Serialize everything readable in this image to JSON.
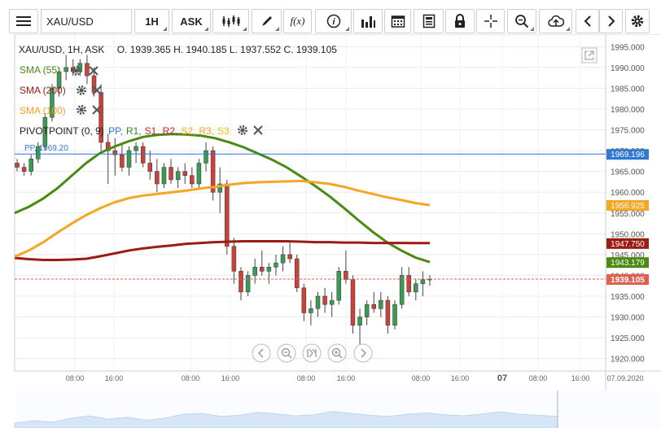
{
  "toolbar": {
    "symbol": "XAU/USD",
    "timeframe": "1H",
    "price_side": "ASK",
    "fx_label": "f(x)"
  },
  "info": {
    "header": "XAU/USD, 1H, ASK",
    "ohlc": "O. 1939.365 H. 1940.185 L. 1937.552 C. 1939.105"
  },
  "indicators": [
    {
      "label": "SMA (55)",
      "color": "#4a8a12"
    },
    {
      "label": "SMA (200)",
      "color": "#9b1c12"
    },
    {
      "label": "SMA (100)",
      "color": "#f5a623"
    }
  ],
  "pivot": {
    "label": "PIVOTPOINT (0, 9)",
    "levels": [
      {
        "name": "PP,",
        "color": "#2f77d0"
      },
      {
        "name": "R1,",
        "color": "#2e8b2e"
      },
      {
        "name": "S1,",
        "color": "#c0271e"
      },
      {
        "name": "R2,",
        "color": "#c0271e"
      },
      {
        "name": "S2,",
        "color": "#f5a623"
      },
      {
        "name": "R3,",
        "color": "#f5a623"
      },
      {
        "name": "S3",
        "color": "#e8c400"
      }
    ],
    "pp_line_label": "PP, 1969.20",
    "pp_value": 1969.196
  },
  "chart_data": {
    "type": "line",
    "ylim": [
      1917,
      1998
    ],
    "y_ticks": [
      1920,
      1925,
      1930,
      1935,
      1940,
      1945,
      1950,
      1955,
      1960,
      1965,
      1970,
      1975,
      1980,
      1985,
      1990,
      1995
    ],
    "y_tick_labels": [
      "1920.000",
      "1925.000",
      "1930.000",
      "1935.000",
      "1940.000",
      "1945.000",
      "1950.000",
      "1955.000",
      "1960.000",
      "1965.000",
      "1970.000",
      "1975.000",
      "1980.000",
      "1985.000",
      "1990.000",
      "1995.000"
    ],
    "x_tick_labels": [
      "08:00",
      "16:00",
      "08:00",
      "16:00",
      "08:00",
      "16:00",
      "08:00",
      "16:00",
      "07",
      "08:00",
      "16:00",
      "07.09.2020"
    ],
    "price_labels": [
      {
        "text": "1969.196",
        "value": 1969.196,
        "color": "#2f77d0"
      },
      {
        "text": "1956.925",
        "value": 1956.925,
        "color": "#f5a623"
      },
      {
        "text": "1947.750",
        "value": 1947.75,
        "color": "#9b1c12"
      },
      {
        "text": "1943.179",
        "value": 1943.179,
        "color": "#4a8a12"
      },
      {
        "text": "1939.105",
        "value": 1939.105,
        "color": "#e0604f"
      }
    ],
    "series": [
      {
        "name": "SMA (55)",
        "color": "#4a8a12",
        "values": [
          1955,
          1956.5,
          1958.5,
          1961,
          1964,
          1967,
          1969.5,
          1971,
          1972.3,
          1973.3,
          1973.8,
          1974,
          1973.9,
          1973.6,
          1973,
          1972,
          1970.8,
          1969.3,
          1967.8,
          1966,
          1963.8,
          1961.5,
          1959,
          1956.2,
          1953.3,
          1950.5,
          1948,
          1946,
          1944.3,
          1943.2
        ]
      },
      {
        "name": "SMA (200)",
        "color": "#9b1c12",
        "values": [
          1944.2,
          1943.9,
          1943.7,
          1943.7,
          1943.8,
          1944,
          1944.6,
          1945.3,
          1946,
          1946.5,
          1946.9,
          1947.2,
          1947.6,
          1947.8,
          1948,
          1948.1,
          1948.2,
          1948.2,
          1948.2,
          1948.2,
          1948.1,
          1948,
          1948,
          1947.9,
          1947.9,
          1947.8,
          1947.8,
          1947.8,
          1947.75,
          1947.75
        ]
      },
      {
        "name": "SMA (100)",
        "color": "#f5a623",
        "values": [
          1944.5,
          1946,
          1948,
          1950.3,
          1952.5,
          1954.5,
          1956.2,
          1957.6,
          1958.6,
          1959.2,
          1959.6,
          1960,
          1960.4,
          1960.9,
          1961.3,
          1961.8,
          1962.2,
          1962.4,
          1962.5,
          1962.6,
          1962.7,
          1962.4,
          1962,
          1961.3,
          1960.4,
          1959.6,
          1958.8,
          1958.1,
          1957.4,
          1956.9
        ]
      }
    ],
    "candles": [
      [
        1967,
        1968,
        1965,
        1966
      ],
      [
        1966,
        1967,
        1964,
        1965
      ],
      [
        1965,
        1969,
        1964,
        1968
      ],
      [
        1968,
        1972,
        1967,
        1971
      ],
      [
        1971,
        1979,
        1970,
        1978
      ],
      [
        1978,
        1986,
        1977,
        1985
      ],
      [
        1985,
        1990,
        1983,
        1989
      ],
      [
        1989,
        1993,
        1987,
        1990
      ],
      [
        1990,
        1992,
        1988,
        1989
      ],
      [
        1989,
        1992,
        1988,
        1991
      ],
      [
        1991,
        1993,
        1986,
        1988
      ],
      [
        1988,
        1990,
        1983,
        1984
      ],
      [
        1984,
        1986,
        1970,
        1972
      ],
      [
        1972,
        1974,
        1962,
        1970
      ],
      [
        1970,
        1973,
        1964,
        1969
      ],
      [
        1969,
        1972,
        1965,
        1966
      ],
      [
        1966,
        1971,
        1964,
        1970
      ],
      [
        1970,
        1972,
        1967,
        1971
      ],
      [
        1971,
        1972,
        1966,
        1967
      ],
      [
        1967,
        1970,
        1963,
        1965
      ],
      [
        1965,
        1968,
        1960,
        1962
      ],
      [
        1962,
        1967,
        1961,
        1966
      ],
      [
        1966,
        1968,
        1962,
        1963
      ],
      [
        1963,
        1966,
        1961,
        1965
      ],
      [
        1965,
        1967,
        1962,
        1964
      ],
      [
        1964,
        1966,
        1961,
        1962
      ],
      [
        1962,
        1968,
        1961,
        1967
      ],
      [
        1967,
        1972,
        1965,
        1970
      ],
      [
        1970,
        1971,
        1958,
        1960
      ],
      [
        1960,
        1966,
        1955,
        1962
      ],
      [
        1962,
        1963,
        1945,
        1947
      ],
      [
        1947,
        1949,
        1938,
        1941
      ],
      [
        1941,
        1942,
        1934,
        1936
      ],
      [
        1936,
        1941,
        1935,
        1940
      ],
      [
        1940,
        1944,
        1938,
        1942
      ],
      [
        1942,
        1946,
        1940,
        1941
      ],
      [
        1941,
        1943,
        1938,
        1942
      ],
      [
        1942,
        1945,
        1940,
        1943
      ],
      [
        1943,
        1947,
        1941,
        1945
      ],
      [
        1945,
        1948,
        1943,
        1944
      ],
      [
        1944,
        1945,
        1936,
        1937
      ],
      [
        1937,
        1938,
        1929,
        1931
      ],
      [
        1931,
        1934,
        1928,
        1932
      ],
      [
        1932,
        1936,
        1930,
        1935
      ],
      [
        1935,
        1937,
        1931,
        1933
      ],
      [
        1933,
        1936,
        1930,
        1934
      ],
      [
        1934,
        1942,
        1933,
        1941
      ],
      [
        1941,
        1946,
        1938,
        1939
      ],
      [
        1939,
        1940,
        1926,
        1928
      ],
      [
        1928,
        1932,
        1922,
        1930
      ],
      [
        1930,
        1934,
        1928,
        1933
      ],
      [
        1933,
        1936,
        1931,
        1932
      ],
      [
        1932,
        1936,
        1930,
        1934
      ],
      [
        1934,
        1935,
        1926,
        1928
      ],
      [
        1928,
        1934,
        1927,
        1933
      ],
      [
        1933,
        1942,
        1932,
        1940
      ],
      [
        1940,
        1942,
        1935,
        1936
      ],
      [
        1936,
        1939,
        1934,
        1938
      ],
      [
        1938,
        1941,
        1935,
        1939
      ],
      [
        1939,
        1940,
        1937.5,
        1939.1
      ]
    ]
  },
  "volume": [
    1,
    1.5,
    1.2,
    2,
    2.5,
    1.8,
    2.2,
    1.6,
    2,
    2.8,
    3,
    2.4,
    2.6,
    3.2,
    2.9,
    2.5,
    2.7,
    3.4,
    3,
    2.6,
    2.4,
    2.8,
    3.1,
    2.7,
    2.5,
    2.9,
    3.3,
    2.8,
    2.6,
    2.4
  ]
}
